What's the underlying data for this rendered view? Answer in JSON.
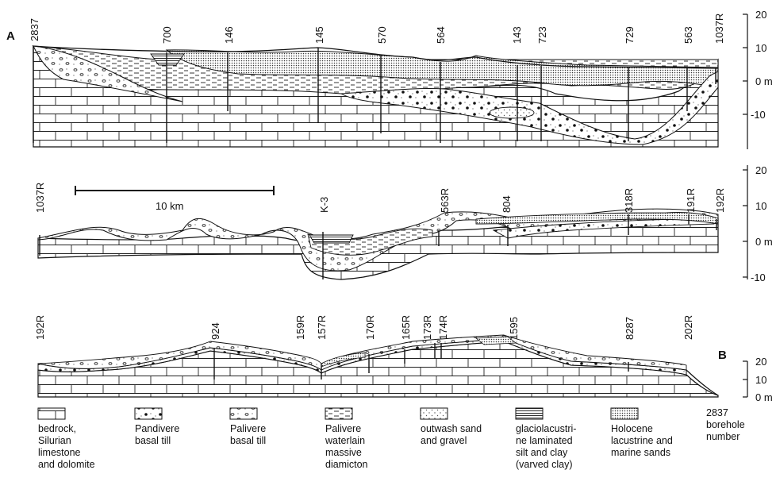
{
  "sections": [
    {
      "id": "A",
      "label": "A",
      "boreholes": [
        "2837",
        "700",
        "146",
        "145",
        "570",
        "564",
        "143",
        "723",
        "729",
        "563",
        "1037R"
      ],
      "scale_ticks": [
        "20",
        "10",
        "0 m",
        "-10"
      ]
    },
    {
      "id": "middle",
      "label": "",
      "boreholes": [
        "1037R",
        "K-3",
        "563R",
        "804",
        "318R",
        "191R",
        "192R"
      ],
      "scale_bar": "10 km",
      "scale_ticks": [
        "20",
        "10",
        "0 m",
        "-10"
      ]
    },
    {
      "id": "B",
      "label": "B",
      "boreholes": [
        "192R",
        "924",
        "159R",
        "157R",
        "170R",
        "165R",
        "173R",
        "174R",
        "1595",
        "8287",
        "202R"
      ],
      "scale_ticks": [
        "20",
        "10",
        "0 m"
      ]
    }
  ],
  "legend": [
    {
      "key": "bedrock",
      "lines": [
        "bedrock,",
        "Silurian",
        "limestone",
        "and dolomite"
      ]
    },
    {
      "key": "pandivere",
      "lines": [
        "Pandivere",
        "basal till"
      ]
    },
    {
      "key": "palivere_till",
      "lines": [
        "Palivere",
        "basal till"
      ]
    },
    {
      "key": "palivere_diamicton",
      "lines": [
        "Palivere",
        "waterlain",
        "massive",
        "diamicton"
      ]
    },
    {
      "key": "outwash",
      "lines": [
        "outwash sand",
        "and gravel"
      ]
    },
    {
      "key": "glaciolacustrine",
      "lines": [
        "glaciolacustri-",
        "ne laminated",
        "silt and clay",
        "(varved clay)"
      ]
    },
    {
      "key": "holocene",
      "lines": [
        "Holocene",
        "lacustrine and",
        "marine sands"
      ]
    },
    {
      "key": "borehole",
      "lines": [
        "2837",
        "borehole",
        "number"
      ]
    }
  ]
}
